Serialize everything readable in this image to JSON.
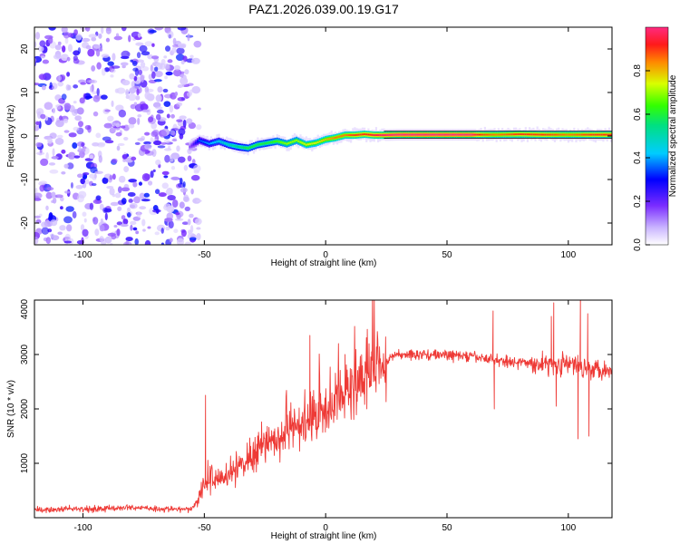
{
  "title": "PAZ1.2026.039.00.19.G17",
  "chart_data": [
    {
      "type": "heatmap",
      "title": "PAZ1.2026.039.00.19.G17",
      "xlabel": "Height of straight line (km)",
      "ylabel": "Frequency (Hz)",
      "xlim": [
        -120,
        118
      ],
      "ylim": [
        -25,
        25
      ],
      "xticks": [
        -100,
        -50,
        0,
        50,
        100
      ],
      "yticks": [
        -20,
        -10,
        0,
        10,
        20
      ],
      "noise_region_x": [
        -120,
        -55
      ],
      "ridge": {
        "x": [
          -56,
          -52,
          -48,
          -44,
          -40,
          -36,
          -32,
          -28,
          -24,
          -20,
          -16,
          -12,
          -8,
          -4,
          0,
          4,
          8,
          12,
          16,
          20,
          24,
          30,
          40,
          50,
          60,
          64,
          70,
          80,
          90,
          100,
          110,
          118
        ],
        "y": [
          -2.5,
          -1.0,
          -1.8,
          -1.2,
          -2.0,
          -2.5,
          -2.8,
          -2.0,
          -1.6,
          -1.2,
          -1.8,
          -1.0,
          -2.0,
          -1.6,
          -0.8,
          -0.4,
          0.2,
          0.2,
          0.4,
          0.2,
          0.2,
          0.3,
          0.3,
          0.3,
          0.3,
          0.3,
          0.3,
          0.4,
          0.3,
          0.3,
          0.3,
          0.3
        ],
        "amplitude": [
          0.15,
          0.35,
          0.4,
          0.45,
          0.5,
          0.55,
          0.6,
          0.6,
          0.6,
          0.65,
          0.7,
          0.7,
          0.75,
          0.75,
          0.8,
          0.85,
          0.85,
          0.9,
          0.9,
          0.95,
          0.98,
          1.0,
          1.0,
          1.0,
          1.0,
          0.9,
          0.85,
          0.9,
          0.9,
          0.85,
          0.9,
          0.9
        ]
      },
      "colorbar": {
        "label": "Normalized spectral amplitude",
        "range": [
          0,
          1
        ],
        "ticks": [
          "0.0",
          "0.2",
          "0.4",
          "0.6",
          "0.8"
        ]
      }
    },
    {
      "type": "line",
      "xlabel": "Height of straight line (km)",
      "ylabel": "SNR (10 * v/v)",
      "xlim": [
        -120,
        118
      ],
      "ylim": [
        0,
        4000
      ],
      "xticks": [
        -100,
        -50,
        0,
        50,
        100
      ],
      "yticks": [
        1000,
        2000,
        3000,
        4000
      ],
      "color": "#ee3a36",
      "series": [
        {
          "name": "SNR",
          "x": [
            -120,
            -110,
            -100,
            -90,
            -80,
            -70,
            -60,
            -55,
            -52,
            -50,
            -45,
            -40,
            -35,
            -30,
            -25,
            -20,
            -15,
            -10,
            -5,
            0,
            5,
            10,
            15,
            20,
            25,
            30,
            40,
            50,
            60,
            70,
            80,
            90,
            100,
            110,
            118
          ],
          "y": [
            140,
            150,
            160,
            175,
            190,
            165,
            150,
            170,
            400,
            650,
            700,
            800,
            950,
            1100,
            1250,
            1450,
            1600,
            1750,
            1850,
            1900,
            2150,
            2350,
            2500,
            2700,
            2900,
            3000,
            3000,
            2990,
            2960,
            2900,
            2850,
            2830,
            2820,
            2760,
            2720
          ]
        }
      ],
      "spikes": [
        {
          "x": -49.5,
          "y": 2250
        },
        {
          "x": -6.5,
          "y": 3350
        },
        {
          "x": 8,
          "y": 3000
        },
        {
          "x": 69,
          "y": 3800
        },
        {
          "x": 93,
          "y": 3700
        },
        {
          "x": 94,
          "y": 3950
        },
        {
          "x": 105,
          "y": 4100
        },
        {
          "x": 108,
          "y": 3750
        }
      ],
      "dips": [
        {
          "x": 69.5,
          "y": 2000
        },
        {
          "x": 95,
          "y": 2050
        },
        {
          "x": 104,
          "y": 1450
        },
        {
          "x": 108.5,
          "y": 1500
        }
      ]
    }
  ]
}
